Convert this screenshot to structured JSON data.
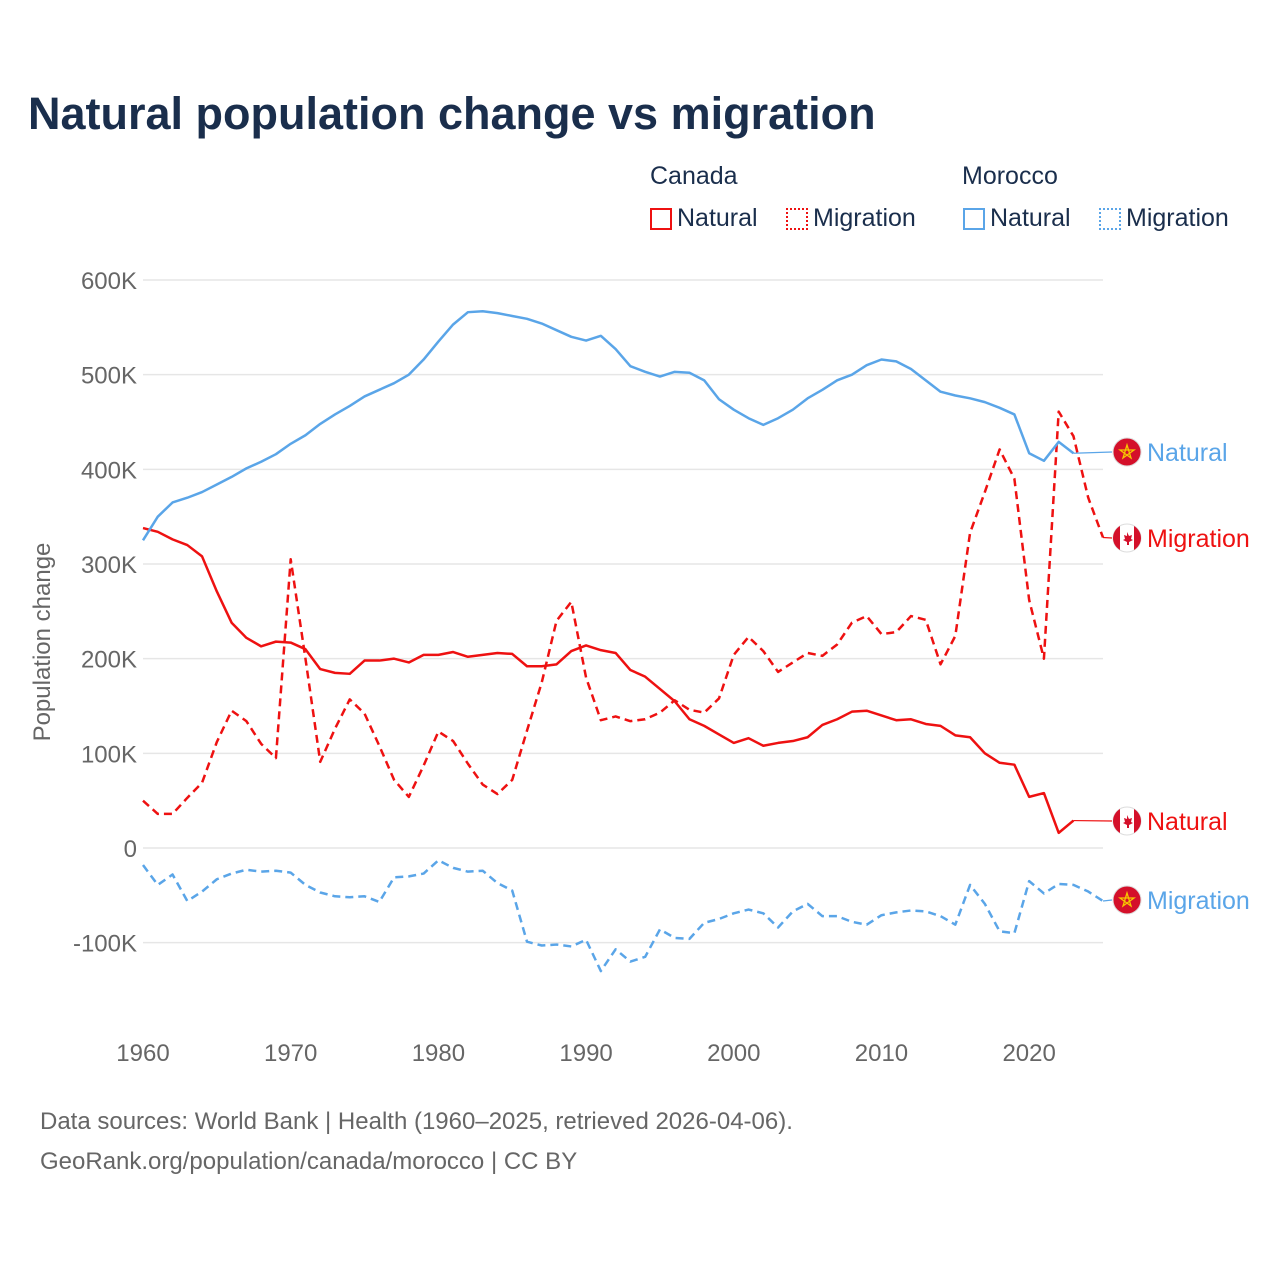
{
  "title": "Natural population change vs migration",
  "legend": {
    "groups": [
      {
        "name": "Canada",
        "color": "#ee1111",
        "items": [
          "Natural",
          "Migration"
        ]
      },
      {
        "name": "Morocco",
        "color": "#5aa5e8",
        "items": [
          "Natural",
          "Migration"
        ]
      }
    ]
  },
  "footer": {
    "line1": "Data sources: World Bank | Health (1960–2025, retrieved 2026-04-06).",
    "line2": "GeoRank.org/population/canada/morocco | CC BY"
  },
  "chart_data": {
    "type": "line",
    "title": "Natural population change vs migration",
    "xlabel": "",
    "ylabel": "Population change",
    "xlim": [
      1960,
      2025
    ],
    "ylim": [
      -100000,
      600000
    ],
    "x_ticks": [
      "1960",
      "1970",
      "1980",
      "1990",
      "2000",
      "2010",
      "2020"
    ],
    "y_ticks": [
      "-100K",
      "0",
      "100K",
      "200K",
      "300K",
      "400K",
      "500K",
      "600K"
    ],
    "grid": true,
    "x_start": 1960,
    "series": [
      {
        "name": "Canada Natural",
        "country": "Canada",
        "label": "Natural",
        "color": "#ee1111",
        "dash": false,
        "flag": "canada-flag",
        "values": [
          338,
          334,
          326,
          320,
          308,
          271,
          238,
          222,
          213,
          218,
          217,
          210,
          189,
          185,
          184,
          198,
          198,
          200,
          196,
          204,
          204,
          207,
          202,
          204,
          206,
          205,
          192,
          192,
          194,
          208,
          214,
          209,
          206,
          188,
          181,
          168,
          155,
          136,
          129,
          120,
          111,
          116,
          108,
          111,
          113,
          117,
          130,
          136,
          144,
          145,
          140,
          135,
          136,
          131,
          129,
          119,
          117,
          100,
          90,
          88,
          54,
          58,
          16,
          29
        ]
      },
      {
        "name": "Canada Migration",
        "country": "Canada",
        "label": "Migration",
        "color": "#ee1111",
        "dash": true,
        "flag": "canada-flag",
        "values": [
          50,
          36,
          36,
          53,
          69,
          112,
          145,
          134,
          110,
          95,
          305,
          200,
          91,
          126,
          157,
          142,
          108,
          72,
          54,
          87,
          123,
          113,
          89,
          67,
          57,
          72,
          124,
          175,
          240,
          260,
          180,
          135,
          139,
          134,
          136,
          143,
          156,
          146,
          143,
          158,
          204,
          223,
          208,
          186,
          196,
          206,
          203,
          215,
          238,
          245,
          226,
          228,
          245,
          241,
          194,
          224,
          333,
          376,
          421,
          390,
          262,
          200,
          461,
          435,
          370,
          328
        ]
      },
      {
        "name": "Morocco Natural",
        "country": "Morocco",
        "label": "Natural",
        "color": "#5aa5e8",
        "dash": false,
        "flag": "morocco-flag",
        "values": [
          325,
          350,
          365,
          370,
          376,
          384,
          392,
          401,
          408,
          416,
          427,
          436,
          448,
          458,
          467,
          477,
          484,
          491,
          500,
          516,
          535,
          553,
          566,
          567,
          565,
          562,
          559,
          554,
          547,
          540,
          536,
          541,
          527,
          509,
          503,
          498,
          503,
          502,
          494,
          474,
          463,
          454,
          447,
          454,
          463,
          475,
          484,
          494,
          500,
          510,
          516,
          514,
          506,
          494,
          482,
          478,
          475,
          471,
          465,
          458,
          417,
          409,
          429,
          417
        ]
      },
      {
        "name": "Morocco Migration",
        "country": "Morocco",
        "label": "Migration",
        "color": "#5aa5e8",
        "dash": true,
        "flag": "morocco-flag",
        "values": [
          -18,
          -39,
          -28,
          -56,
          -46,
          -33,
          -27,
          -23,
          -25,
          -24,
          -26,
          -39,
          -47,
          -51,
          -52,
          -51,
          -57,
          -31,
          -30,
          -27,
          -13,
          -21,
          -25,
          -24,
          -37,
          -45,
          -99,
          -103,
          -102,
          -104,
          -97,
          -130,
          -107,
          -120,
          -115,
          -86,
          -95,
          -96,
          -79,
          -75,
          -69,
          -65,
          -69,
          -84,
          -67,
          -59,
          -72,
          -72,
          -78,
          -81,
          -71,
          -68,
          -66,
          -67,
          -72,
          -81,
          -39,
          -59,
          -88,
          -90,
          -35,
          -48,
          -38,
          -39,
          -46,
          -56
        ]
      }
    ],
    "value_units": "thousands"
  }
}
